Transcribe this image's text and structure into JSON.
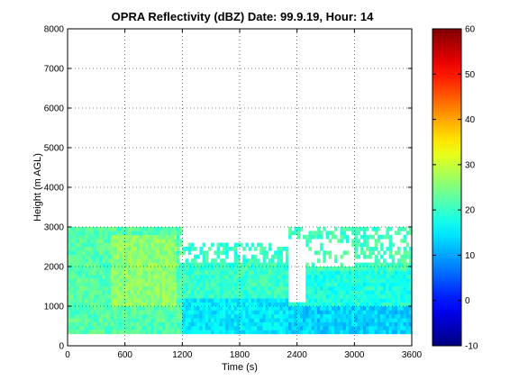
{
  "chart_data": {
    "type": "heatmap",
    "title": "OPRA Reflectivity (dBZ)  Date: 99.9.19, Hour: 14",
    "xlabel": "Time (s)",
    "ylabel": "Height (m AGL)",
    "xlim": [
      0,
      3600
    ],
    "ylim": [
      0,
      8000
    ],
    "x_ticks": [
      "0",
      "600",
      "1200",
      "1800",
      "2400",
      "3000",
      "3600"
    ],
    "y_ticks": [
      "0",
      "1000",
      "2000",
      "3000",
      "4000",
      "5000",
      "6000",
      "7000",
      "8000"
    ],
    "grid": true,
    "colorbar": {
      "colormap": "jet",
      "range": [
        -10,
        60
      ],
      "ticks": [
        "-10",
        "0",
        "10",
        "20",
        "30",
        "40",
        "50",
        "60"
      ]
    },
    "data_extent": {
      "time": [
        0,
        3600
      ],
      "height": [
        300,
        3000
      ]
    },
    "regions": [
      {
        "time": [
          0,
          1200
        ],
        "height": [
          300,
          3000
        ],
        "dbz": 22
      },
      {
        "time": [
          450,
          1150
        ],
        "height": [
          1000,
          2800
        ],
        "dbz": 26
      },
      {
        "time": [
          1200,
          2300
        ],
        "height": [
          300,
          1200
        ],
        "dbz": 15
      },
      {
        "time": [
          1200,
          2300
        ],
        "height": [
          1200,
          2600
        ],
        "dbz": 20
      },
      {
        "time": [
          2300,
          3600
        ],
        "height": [
          300,
          1000
        ],
        "dbz": 13
      },
      {
        "time": [
          2300,
          3600
        ],
        "height": [
          1000,
          1900
        ],
        "dbz": 18
      },
      {
        "time": [
          2300,
          3600
        ],
        "height": [
          1900,
          3000
        ],
        "dbz": 21
      }
    ]
  }
}
